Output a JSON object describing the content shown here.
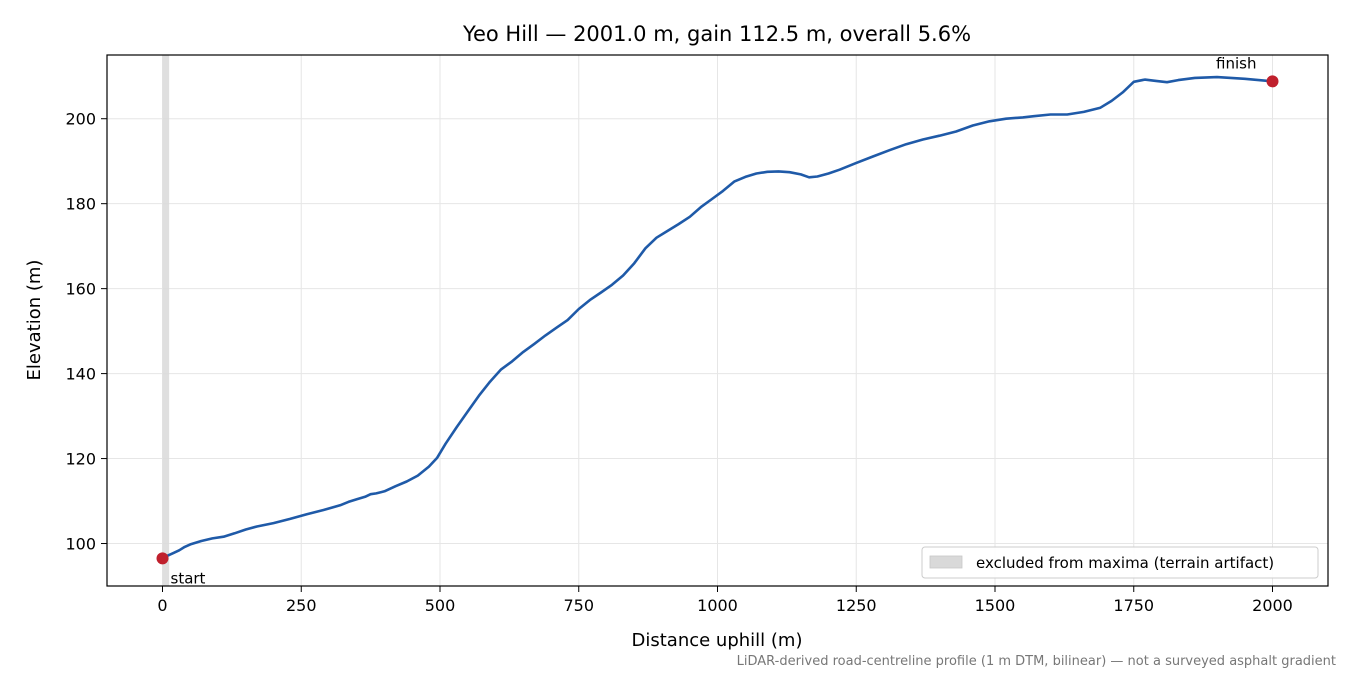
{
  "chart_data": {
    "type": "line",
    "title": "Yeo Hill — 2001.0 m, gain 112.5 m, overall 5.6%",
    "xlabel": "Distance uphill (m)",
    "ylabel": "Elevation (m)",
    "xlim": [
      -100,
      2100
    ],
    "ylim": [
      90,
      215
    ],
    "xticks": [
      0,
      250,
      500,
      750,
      1000,
      1250,
      1500,
      1750,
      2000
    ],
    "yticks": [
      100,
      120,
      140,
      160,
      180,
      200
    ],
    "grid": true,
    "legend_position": "lower-right",
    "legend": {
      "label": "excluded from maxima (terrain artifact)",
      "color": "#d9d9d9"
    },
    "excluded_span": [
      0,
      12
    ],
    "series": [
      {
        "color": "#1f5aa8",
        "x": [
          0,
          10,
          20,
          30,
          40,
          50,
          70,
          90,
          110,
          130,
          150,
          170,
          200,
          230,
          260,
          290,
          320,
          335,
          350,
          365,
          375,
          385,
          400,
          420,
          440,
          460,
          480,
          495,
          510,
          530,
          550,
          570,
          590,
          610,
          630,
          650,
          670,
          690,
          710,
          730,
          750,
          770,
          790,
          810,
          830,
          850,
          870,
          890,
          910,
          930,
          950,
          970,
          990,
          1010,
          1030,
          1050,
          1070,
          1090,
          1110,
          1130,
          1150,
          1165,
          1180,
          1200,
          1220,
          1250,
          1280,
          1310,
          1340,
          1370,
          1400,
          1430,
          1460,
          1490,
          1520,
          1550,
          1570,
          1600,
          1630,
          1660,
          1690,
          1710,
          1730,
          1750,
          1770,
          1790,
          1810,
          1830,
          1860,
          1900,
          1950,
          2000
        ],
        "y": [
          96.5,
          97.2,
          97.8,
          98.4,
          99.2,
          99.8,
          100.6,
          101.2,
          101.6,
          102.4,
          103.3,
          104.0,
          104.8,
          105.8,
          106.9,
          107.9,
          109.0,
          109.8,
          110.4,
          111.0,
          111.6,
          111.8,
          112.3,
          113.5,
          114.6,
          116.0,
          118.1,
          120.2,
          123.5,
          127.4,
          131.1,
          134.8,
          138.1,
          141.0,
          142.9,
          145.1,
          147.0,
          149.0,
          150.8,
          152.6,
          155.2,
          157.3,
          159.1,
          160.9,
          163.1,
          166.0,
          169.5,
          172.0,
          173.6,
          175.2,
          176.9,
          179.2,
          181.1,
          183.0,
          185.2,
          186.3,
          187.1,
          187.5,
          187.6,
          187.4,
          186.9,
          186.2,
          186.4,
          187.1,
          188.0,
          189.6,
          191.1,
          192.6,
          194.0,
          195.1,
          196.0,
          197.0,
          198.4,
          199.4,
          200.0,
          200.3,
          200.6,
          201.0,
          201.0,
          201.6,
          202.6,
          204.2,
          206.2,
          208.7,
          209.2,
          208.9,
          208.6,
          209.1,
          209.6,
          209.8,
          209.4,
          208.8
        ]
      }
    ],
    "points": [
      {
        "label": "start",
        "x": 0,
        "y": 96.5,
        "color": "#c0202d"
      },
      {
        "label": "finish",
        "x": 2000,
        "y": 208.8,
        "color": "#c0202d"
      }
    ],
    "caption": "LiDAR-derived road-centreline profile (1 m DTM, bilinear) — not a surveyed asphalt gradient"
  }
}
